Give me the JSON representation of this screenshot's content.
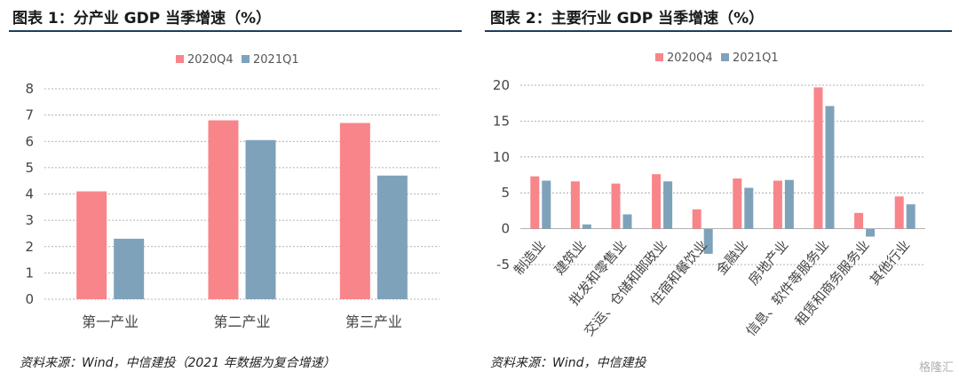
{
  "chart_data": [
    {
      "type": "bar",
      "title": "图表 1：分产业 GDP 当季增速（%）",
      "categories": [
        "第一产业",
        "第二产业",
        "第三产业"
      ],
      "series": [
        {
          "name": "2020Q4",
          "values": [
            4.1,
            6.8,
            6.7
          ],
          "color": "#f8858a"
        },
        {
          "name": "2021Q1",
          "values": [
            2.3,
            6.05,
            4.7
          ],
          "color": "#7fa2bb"
        }
      ],
      "ylim": [
        0,
        8
      ],
      "yticks": [
        0,
        1,
        2,
        3,
        4,
        5,
        6,
        7,
        8
      ],
      "grid": true,
      "legend": "top-center",
      "source": "资料来源：Wind，中信建投（2021 年数据为复合增速）"
    },
    {
      "type": "bar",
      "title": "图表 2：主要行业 GDP 当季增速（%）",
      "categories": [
        "制造业",
        "建筑业",
        "批发和零售业",
        "交运、仓储和邮政业",
        "住宿和餐饮业",
        "金融业",
        "房地产业",
        "信息、软件等服务业",
        "租赁和商务服务业",
        "其他行业"
      ],
      "series": [
        {
          "name": "2020Q4",
          "values": [
            7.3,
            6.6,
            6.3,
            7.6,
            2.7,
            7.0,
            6.7,
            19.7,
            2.2,
            4.5
          ],
          "color": "#f8858a"
        },
        {
          "name": "2021Q1",
          "values": [
            6.7,
            0.6,
            2.0,
            6.6,
            -3.5,
            5.7,
            6.8,
            17.1,
            -1.1,
            3.4
          ],
          "color": "#7fa2bb"
        }
      ],
      "ylim": [
        -5,
        20
      ],
      "yticks": [
        -5,
        0,
        5,
        10,
        15,
        20
      ],
      "grid": true,
      "legend": "top-center",
      "source": "资料来源：Wind，中信建投"
    }
  ],
  "watermark": "格隆汇"
}
